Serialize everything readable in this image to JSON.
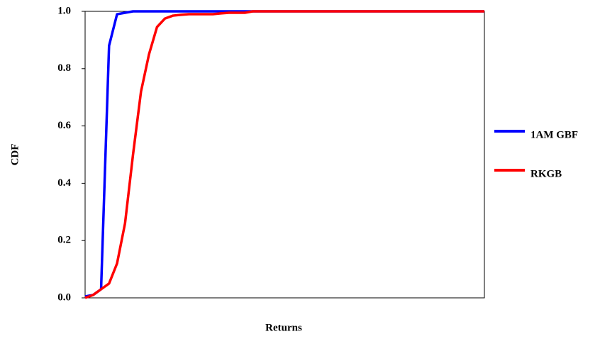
{
  "chart_data": {
    "type": "line",
    "y_label": "CDF",
    "x_label": "Returns",
    "categories": [
      null,
      null,
      null,
      null,
      null,
      null,
      null,
      null,
      null,
      null,
      null,
      null,
      null,
      null,
      null,
      null,
      null,
      null,
      null,
      null,
      null,
      null,
      null,
      null,
      null,
      null,
      null,
      null,
      null,
      null,
      null,
      null,
      null,
      null,
      null,
      null,
      null,
      null,
      null,
      null,
      null,
      null,
      null,
      null,
      null,
      null,
      null,
      null,
      null,
      null,
      null
    ],
    "series": [
      {
        "name": "1AM GBF",
        "color": "#0000ff",
        "values": [
          0.005,
          0.01,
          0.03,
          0.88,
          0.99,
          0.995,
          1,
          1,
          1,
          1,
          1,
          1,
          1,
          1,
          1,
          1,
          1,
          1,
          1,
          1,
          1,
          1,
          1,
          1,
          1,
          1,
          1,
          1,
          1,
          1,
          1,
          1,
          1,
          1,
          1,
          1,
          1,
          1,
          1,
          1,
          1,
          1,
          1,
          1,
          1,
          1,
          1,
          1,
          1,
          1,
          1
        ]
      },
      {
        "name": "RKGB",
        "color": "#ff0000",
        "values": [
          0,
          0.01,
          0.03,
          0.05,
          0.12,
          0.26,
          0.5,
          0.72,
          0.85,
          0.945,
          0.975,
          0.985,
          0.988,
          0.99,
          0.99,
          0.99,
          0.99,
          0.993,
          0.995,
          0.995,
          0.995,
          1,
          1,
          1,
          1,
          1,
          1,
          1,
          1,
          1,
          1,
          1,
          1,
          1,
          1,
          1,
          1,
          1,
          1,
          1,
          1,
          1,
          1,
          1,
          1,
          1,
          1,
          1,
          1,
          1,
          1
        ]
      }
    ],
    "ylim": [
      0,
      1
    ],
    "yticks": [
      {
        "value": 0,
        "label": "0.0"
      },
      0.2,
      0.4,
      0.6,
      0.8,
      {
        "value": 1,
        "label": "1.0"
      }
    ],
    "grid": false,
    "legend": "right"
  }
}
